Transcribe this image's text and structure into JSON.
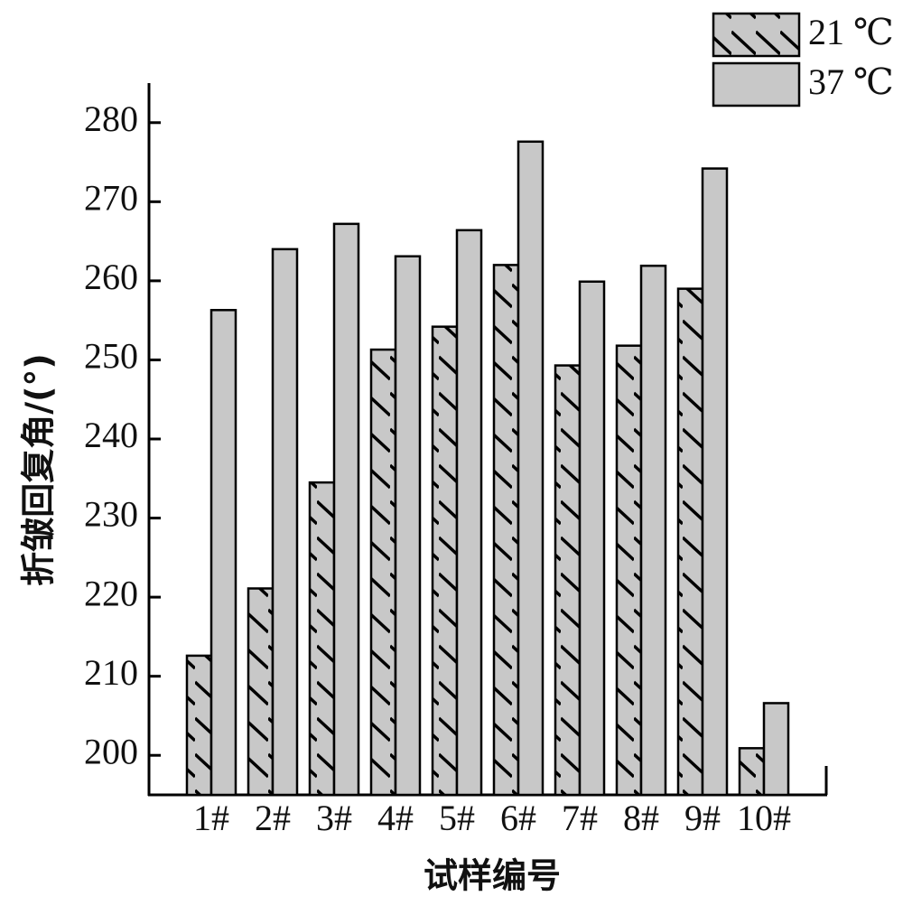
{
  "chart_data": {
    "type": "bar",
    "x_label": "试样编号",
    "y_label": "折皱回复角/(°)",
    "categories": [
      "1#",
      "2#",
      "3#",
      "4#",
      "5#",
      "6#",
      "7#",
      "8#",
      "9#",
      "10#"
    ],
    "series": [
      {
        "name": "21 ℃",
        "color": "#c8c8c8",
        "hatch": true,
        "values": [
          212.6,
          221.1,
          234.5,
          251.3,
          254.2,
          262.0,
          249.3,
          251.8,
          259.0,
          200.9
        ]
      },
      {
        "name": "37 ℃",
        "color": "#c8c8c8",
        "hatch": false,
        "values": [
          256.3,
          264.0,
          267.2,
          263.1,
          266.4,
          277.6,
          259.9,
          261.9,
          274.2,
          206.6
        ]
      }
    ],
    "ylim": [
      195,
      285
    ],
    "yticks": [
      200,
      210,
      220,
      230,
      240,
      250,
      260,
      270,
      280
    ],
    "legend": "top-right"
  }
}
